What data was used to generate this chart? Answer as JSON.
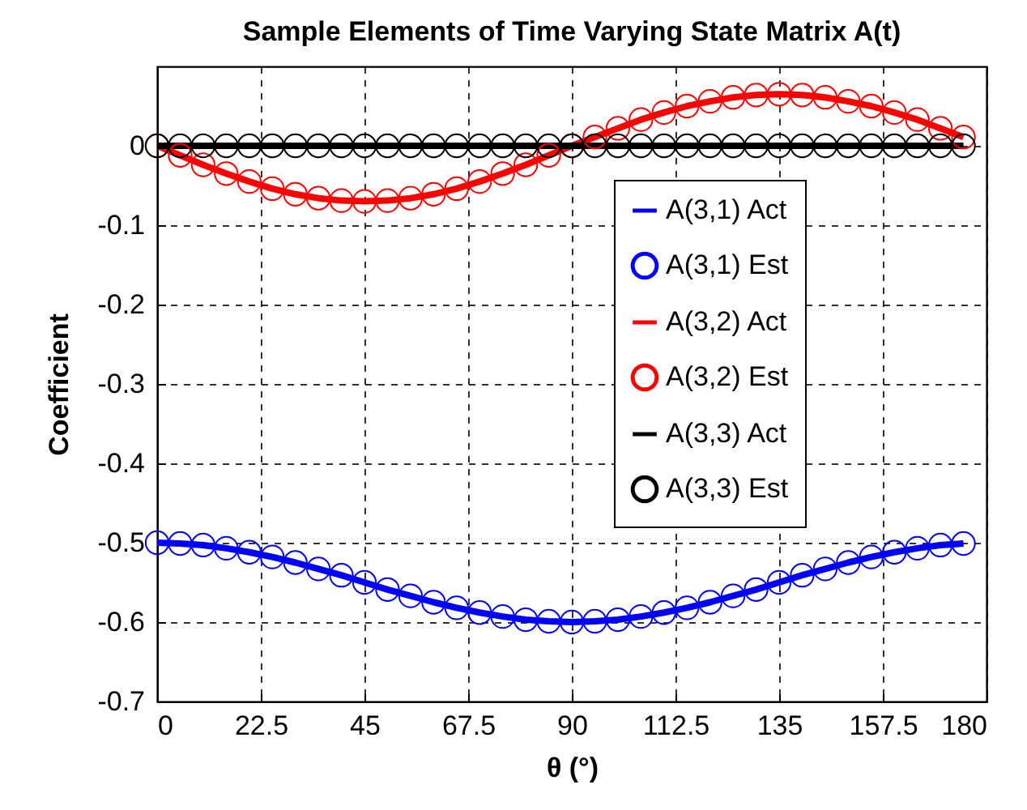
{
  "chart_data": {
    "type": "line",
    "title": "Sample Elements of Time Varying State Matrix A(t)",
    "xlabel": "θ (°)",
    "ylabel": "Coefficient",
    "x": [
      0,
      5,
      10,
      15,
      20,
      25,
      30,
      35,
      40,
      45,
      50,
      55,
      60,
      65,
      70,
      75,
      80,
      85,
      90,
      95,
      100,
      105,
      110,
      115,
      120,
      125,
      130,
      135,
      140,
      145,
      150,
      155,
      160,
      165,
      170,
      175
    ],
    "series": [
      {
        "name": "A(3,1) Act",
        "color": "#0000ff",
        "marker": "none",
        "values": [
          -0.5,
          -0.501,
          -0.503,
          -0.507,
          -0.512,
          -0.518,
          -0.525,
          -0.533,
          -0.541,
          -0.55,
          -0.559,
          -0.567,
          -0.575,
          -0.582,
          -0.588,
          -0.593,
          -0.597,
          -0.599,
          -0.6,
          -0.599,
          -0.597,
          -0.593,
          -0.588,
          -0.582,
          -0.575,
          -0.567,
          -0.559,
          -0.55,
          -0.541,
          -0.533,
          -0.525,
          -0.518,
          -0.512,
          -0.507,
          -0.503,
          -0.501
        ]
      },
      {
        "name": "A(3,1) Est",
        "type": "scatter",
        "color": "#0000ff",
        "marker": "circle",
        "values": [
          -0.5,
          -0.501,
          -0.503,
          -0.507,
          -0.512,
          -0.518,
          -0.525,
          -0.533,
          -0.541,
          -0.55,
          -0.559,
          -0.567,
          -0.575,
          -0.582,
          -0.588,
          -0.593,
          -0.597,
          -0.599,
          -0.6,
          -0.599,
          -0.597,
          -0.593,
          -0.588,
          -0.582,
          -0.575,
          -0.567,
          -0.559,
          -0.55,
          -0.541,
          -0.533,
          -0.525,
          -0.518,
          -0.512,
          -0.507,
          -0.503,
          -0.501
        ]
      },
      {
        "name": "A(3,2) Act",
        "color": "#ff0000",
        "marker": "none",
        "values": [
          0,
          -0.012,
          -0.024,
          -0.035,
          -0.045,
          -0.054,
          -0.061,
          -0.066,
          -0.069,
          -0.07,
          -0.069,
          -0.066,
          -0.061,
          -0.054,
          -0.045,
          -0.035,
          -0.024,
          -0.012,
          0,
          0.011,
          0.022,
          0.033,
          0.042,
          0.05,
          0.056,
          0.061,
          0.064,
          0.065,
          0.064,
          0.061,
          0.056,
          0.05,
          0.042,
          0.033,
          0.022,
          0.011
        ]
      },
      {
        "name": "A(3,2) Est",
        "type": "scatter",
        "color": "#ff0000",
        "marker": "circle",
        "values": [
          0,
          -0.012,
          -0.024,
          -0.035,
          -0.045,
          -0.054,
          -0.061,
          -0.066,
          -0.069,
          -0.07,
          -0.069,
          -0.066,
          -0.061,
          -0.054,
          -0.045,
          -0.035,
          -0.024,
          -0.012,
          0,
          0.011,
          0.022,
          0.033,
          0.042,
          0.05,
          0.056,
          0.061,
          0.064,
          0.065,
          0.064,
          0.061,
          0.056,
          0.05,
          0.042,
          0.033,
          0.022,
          0.011
        ]
      },
      {
        "name": "A(3,3) Act",
        "color": "#000000",
        "marker": "none",
        "values": [
          0,
          0,
          0,
          0,
          0,
          0,
          0,
          0,
          0,
          0,
          0,
          0,
          0,
          0,
          0,
          0,
          0,
          0,
          0,
          0,
          0,
          0,
          0,
          0,
          0,
          0,
          0,
          0,
          0,
          0,
          0,
          0,
          0,
          0,
          0,
          0
        ]
      },
      {
        "name": "A(3,3) Est",
        "type": "scatter",
        "color": "#000000",
        "marker": "circle",
        "values": [
          0,
          0,
          0,
          0,
          0,
          0,
          0,
          0,
          0,
          0,
          0,
          0,
          0,
          0,
          0,
          0,
          0,
          0,
          0,
          0,
          0,
          0,
          0,
          0,
          0,
          0,
          0,
          0,
          0,
          0,
          0,
          0,
          0,
          0,
          0,
          0
        ]
      }
    ],
    "xlim": [
      0,
      180
    ],
    "xticks": [
      0,
      22.5,
      45,
      67.5,
      90,
      112.5,
      135,
      157.5,
      180
    ],
    "ylim": [
      -0.7,
      0.1
    ],
    "yticks": [
      -0.7,
      -0.6,
      -0.5,
      -0.4,
      -0.3,
      -0.2,
      -0.1,
      0
    ],
    "grid": true,
    "legend": "right",
    "line_style": "solid"
  }
}
